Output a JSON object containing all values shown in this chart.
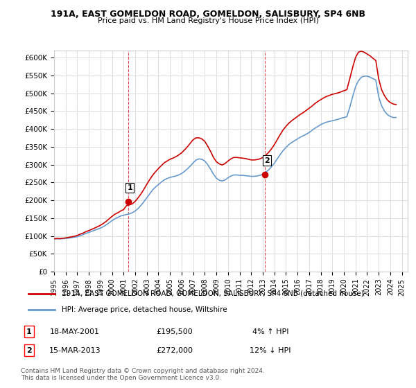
{
  "title_line1": "191A, EAST GOMELDON ROAD, GOMELDON, SALISBURY, SP4 6NB",
  "title_line2": "Price paid vs. HM Land Registry's House Price Index (HPI)",
  "ylabel_ticks": [
    "£0",
    "£50K",
    "£100K",
    "£150K",
    "£200K",
    "£250K",
    "£300K",
    "£350K",
    "£400K",
    "£450K",
    "£500K",
    "£550K",
    "£600K"
  ],
  "ytick_values": [
    0,
    50000,
    100000,
    150000,
    200000,
    250000,
    300000,
    350000,
    400000,
    450000,
    500000,
    550000,
    600000
  ],
  "ylim": [
    0,
    620000
  ],
  "xlim_start": 1995.0,
  "xlim_end": 2025.5,
  "background_color": "#ffffff",
  "plot_bg_color": "#ffffff",
  "grid_color": "#e0e0e0",
  "red_line_color": "#cc0000",
  "blue_line_color": "#6699cc",
  "marker1_x": 2001.38,
  "marker1_y": 195500,
  "marker1_label": "1",
  "marker2_x": 2013.21,
  "marker2_y": 272000,
  "marker2_label": "2",
  "dashed_line1_x": 2001.38,
  "dashed_line2_x": 2013.21,
  "legend_line1": "191A, EAST GOMELDON ROAD, GOMELDON, SALISBURY, SP4 6NB (detached house)",
  "legend_line2": "HPI: Average price, detached house, Wiltshire",
  "table_row1_num": "1",
  "table_row1_date": "18-MAY-2001",
  "table_row1_price": "£195,500",
  "table_row1_hpi": "4% ↑ HPI",
  "table_row2_num": "2",
  "table_row2_date": "15-MAR-2013",
  "table_row2_price": "£272,000",
  "table_row2_hpi": "12% ↓ HPI",
  "footnote": "Contains HM Land Registry data © Crown copyright and database right 2024.\nThis data is licensed under the Open Government Licence v3.0.",
  "xtick_years": [
    1995,
    1996,
    1997,
    1998,
    1999,
    2000,
    2001,
    2002,
    2003,
    2004,
    2005,
    2006,
    2007,
    2008,
    2009,
    2010,
    2011,
    2012,
    2013,
    2014,
    2015,
    2016,
    2017,
    2018,
    2019,
    2020,
    2021,
    2022,
    2023,
    2024,
    2025
  ],
  "hpi_x": [
    1995.0,
    1995.25,
    1995.5,
    1995.75,
    1996.0,
    1996.25,
    1996.5,
    1996.75,
    1997.0,
    1997.25,
    1997.5,
    1997.75,
    1998.0,
    1998.25,
    1998.5,
    1998.75,
    1999.0,
    1999.25,
    1999.5,
    1999.75,
    2000.0,
    2000.25,
    2000.5,
    2000.75,
    2001.0,
    2001.25,
    2001.5,
    2001.75,
    2002.0,
    2002.25,
    2002.5,
    2002.75,
    2003.0,
    2003.25,
    2003.5,
    2003.75,
    2004.0,
    2004.25,
    2004.5,
    2004.75,
    2005.0,
    2005.25,
    2005.5,
    2005.75,
    2006.0,
    2006.25,
    2006.5,
    2006.75,
    2007.0,
    2007.25,
    2007.5,
    2007.75,
    2008.0,
    2008.25,
    2008.5,
    2008.75,
    2009.0,
    2009.25,
    2009.5,
    2009.75,
    2010.0,
    2010.25,
    2010.5,
    2010.75,
    2011.0,
    2011.25,
    2011.5,
    2011.75,
    2012.0,
    2012.25,
    2012.5,
    2012.75,
    2013.0,
    2013.25,
    2013.5,
    2013.75,
    2014.0,
    2014.25,
    2014.5,
    2014.75,
    2015.0,
    2015.25,
    2015.5,
    2015.75,
    2016.0,
    2016.25,
    2016.5,
    2016.75,
    2017.0,
    2017.25,
    2017.5,
    2017.75,
    2018.0,
    2018.25,
    2018.5,
    2018.75,
    2019.0,
    2019.25,
    2019.5,
    2019.75,
    2020.0,
    2020.25,
    2020.5,
    2020.75,
    2021.0,
    2021.25,
    2021.5,
    2021.75,
    2022.0,
    2022.25,
    2022.5,
    2022.75,
    2023.0,
    2023.25,
    2023.5,
    2023.75,
    2024.0,
    2024.25,
    2024.5
  ],
  "hpi_y": [
    91000,
    92000,
    91500,
    92500,
    93000,
    94000,
    95000,
    96500,
    98000,
    101000,
    104000,
    107000,
    110000,
    113000,
    116000,
    119000,
    122000,
    126000,
    131000,
    137000,
    143000,
    148000,
    152000,
    156000,
    158000,
    160000,
    162000,
    165000,
    170000,
    177000,
    186000,
    196000,
    207000,
    218000,
    229000,
    237000,
    244000,
    251000,
    257000,
    261000,
    264000,
    266000,
    268000,
    271000,
    275000,
    281000,
    288000,
    296000,
    305000,
    313000,
    316000,
    315000,
    310000,
    300000,
    287000,
    273000,
    262000,
    256000,
    254000,
    257000,
    263000,
    268000,
    271000,
    271000,
    270000,
    270000,
    269000,
    268000,
    267000,
    267000,
    268000,
    270000,
    273000,
    278000,
    285000,
    294000,
    304000,
    316000,
    328000,
    339000,
    348000,
    356000,
    362000,
    367000,
    372000,
    377000,
    381000,
    385000,
    390000,
    396000,
    402000,
    407000,
    412000,
    416000,
    419000,
    421000,
    423000,
    425000,
    427000,
    430000,
    432000,
    434000,
    460000,
    490000,
    518000,
    535000,
    545000,
    548000,
    548000,
    545000,
    541000,
    537000,
    490000,
    465000,
    450000,
    440000,
    435000,
    432000,
    432000
  ],
  "price_x": [
    1995.0,
    1995.25,
    1995.5,
    1995.75,
    1996.0,
    1996.25,
    1996.5,
    1996.75,
    1997.0,
    1997.25,
    1997.5,
    1997.75,
    1998.0,
    1998.25,
    1998.5,
    1998.75,
    1999.0,
    1999.25,
    1999.5,
    1999.75,
    2000.0,
    2000.25,
    2000.5,
    2000.75,
    2001.0,
    2001.25,
    2001.5,
    2001.75,
    2002.0,
    2002.25,
    2002.5,
    2002.75,
    2003.0,
    2003.25,
    2003.5,
    2003.75,
    2004.0,
    2004.25,
    2004.5,
    2004.75,
    2005.0,
    2005.25,
    2005.5,
    2005.75,
    2006.0,
    2006.25,
    2006.5,
    2006.75,
    2007.0,
    2007.25,
    2007.5,
    2007.75,
    2008.0,
    2008.25,
    2008.5,
    2008.75,
    2009.0,
    2009.25,
    2009.5,
    2009.75,
    2010.0,
    2010.25,
    2010.5,
    2010.75,
    2011.0,
    2011.25,
    2011.5,
    2011.75,
    2012.0,
    2012.25,
    2012.5,
    2012.75,
    2013.0,
    2013.25,
    2013.5,
    2013.75,
    2014.0,
    2014.25,
    2014.5,
    2014.75,
    2015.0,
    2015.25,
    2015.5,
    2015.75,
    2016.0,
    2016.25,
    2016.5,
    2016.75,
    2017.0,
    2017.25,
    2017.5,
    2017.75,
    2018.0,
    2018.25,
    2018.5,
    2018.75,
    2019.0,
    2019.25,
    2019.5,
    2019.75,
    2020.0,
    2020.25,
    2020.5,
    2020.75,
    2021.0,
    2021.25,
    2021.5,
    2021.75,
    2022.0,
    2022.25,
    2022.5,
    2022.75,
    2023.0,
    2023.25,
    2023.5,
    2023.75,
    2024.0,
    2024.25,
    2024.5
  ],
  "price_y": [
    92000,
    93000,
    92500,
    93500,
    94500,
    96000,
    97500,
    99000,
    101500,
    105000,
    108000,
    112000,
    115000,
    118500,
    122000,
    126000,
    130000,
    135000,
    141000,
    148000,
    155000,
    161000,
    165000,
    170000,
    174000,
    185000,
    187000,
    190000,
    197000,
    207000,
    218000,
    231000,
    245000,
    258000,
    270000,
    280000,
    289000,
    297000,
    305000,
    310000,
    315000,
    318000,
    322000,
    327000,
    333000,
    341000,
    350000,
    360000,
    370000,
    375000,
    375000,
    372000,
    365000,
    352000,
    337000,
    320000,
    308000,
    302000,
    299000,
    303000,
    310000,
    316000,
    320000,
    320000,
    319000,
    318000,
    317000,
    315000,
    313000,
    313000,
    314000,
    316000,
    320000,
    326000,
    334000,
    344000,
    356000,
    370000,
    384000,
    397000,
    407000,
    416000,
    423000,
    429000,
    435000,
    441000,
    446000,
    452000,
    458000,
    464000,
    471000,
    477000,
    482000,
    487000,
    491000,
    494000,
    497000,
    499000,
    501000,
    504000,
    507000,
    510000,
    540000,
    572000,
    600000,
    615000,
    618000,
    615000,
    610000,
    605000,
    598000,
    592000,
    540000,
    510000,
    493000,
    481000,
    474000,
    470000,
    468000
  ]
}
